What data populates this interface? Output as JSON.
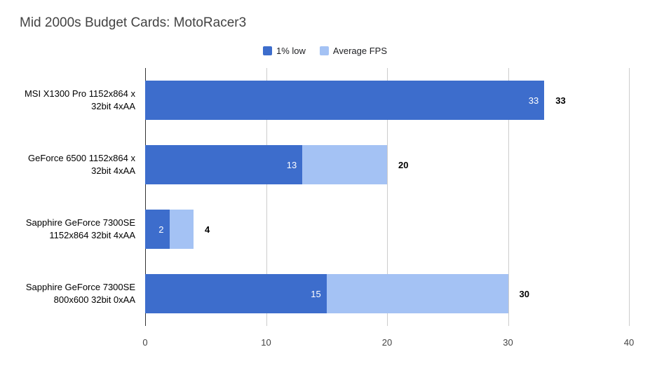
{
  "chart_data": {
    "type": "bar",
    "orientation": "horizontal",
    "title": "Mid 2000s Budget Cards: MotoRacer3",
    "categories": [
      "MSI X1300 Pro 1152x864 x 32bit 4xAA",
      "GeForce 6500 1152x864 x 32bit 4xAA",
      "Sapphire GeForce 7300SE 1152x864 32bit 4xAA",
      "Sapphire GeForce 7300SE 800x600 32bit 0xAA"
    ],
    "series": [
      {
        "name": "1% low",
        "color": "#3d6dcc",
        "values": [
          33,
          13,
          2,
          15
        ]
      },
      {
        "name": "Average FPS",
        "color": "#a4c2f4",
        "values": [
          33,
          20,
          4,
          30
        ]
      }
    ],
    "xlim": [
      0,
      40
    ],
    "xticks": [
      0,
      10,
      20,
      30,
      40
    ],
    "grid": true,
    "legend_position": "top",
    "data_labels": {
      "inner_white": [
        33,
        13,
        2,
        15
      ],
      "outer_bold": [
        33,
        20,
        4,
        30
      ]
    }
  },
  "colors": {
    "background": "#ffffff",
    "gridline": "#cccccc",
    "axis_line": "#333333",
    "title_text": "#434343",
    "bar_dark": "#3d6dcc",
    "bar_light": "#a4c2f4"
  }
}
